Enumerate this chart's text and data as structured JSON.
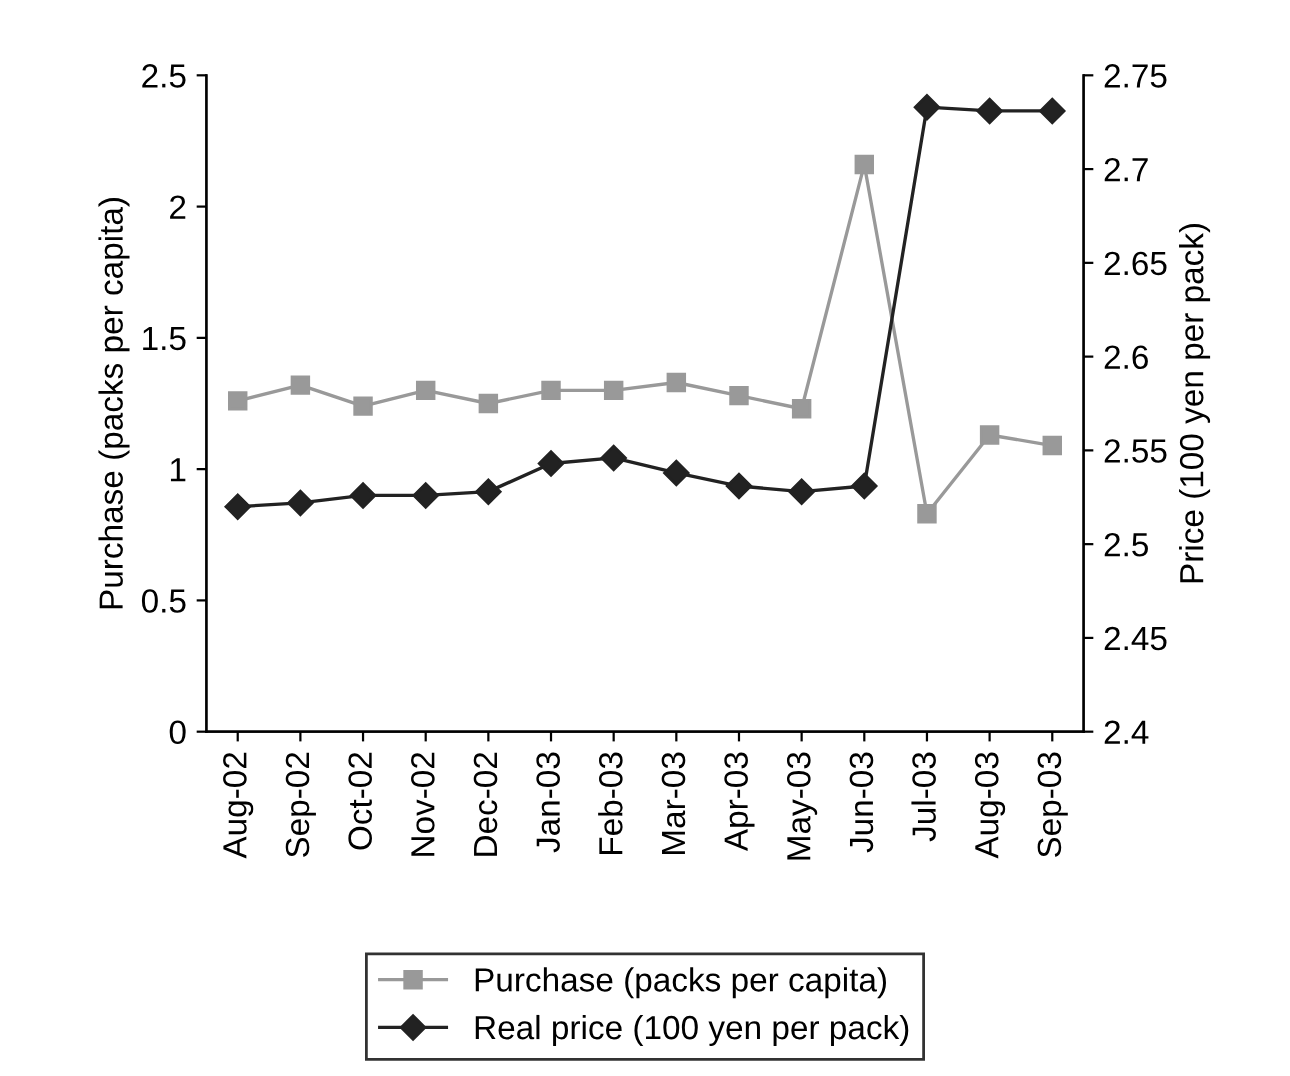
{
  "chart_data": {
    "type": "line",
    "xlabel": null,
    "ylabel": "Purchase (packs per capita)",
    "y2label": "Price (100 yen per pack)",
    "categories": [
      "Aug-02",
      "Sep-02",
      "Oct-02",
      "Nov-02",
      "Dec-02",
      "Jan-03",
      "Feb-03",
      "Mar-03",
      "Apr-03",
      "May-03",
      "Jun-03",
      "Jul-03",
      "Aug-03",
      "Sep-03"
    ],
    "series": [
      {
        "name": "Purchase (packs per capita)",
        "color": "#999999",
        "marker": "square",
        "values": [
          1.26,
          1.32,
          1.24,
          1.3,
          1.25,
          1.3,
          1.3,
          1.33,
          1.28,
          1.23,
          2.16,
          0.83,
          1.13,
          1.09
        ]
      },
      {
        "name": "Real price (100 yen per pack)",
        "color": "#222222",
        "marker": "diamond",
        "axis": "y2",
        "values": [
          2.52,
          2.522,
          2.526,
          2.526,
          2.528,
          2.543,
          2.546,
          2.538,
          2.531,
          2.528,
          2.531,
          2.733,
          2.731,
          2.731
        ]
      }
    ],
    "ylim": [
      0,
      2.5
    ],
    "yticks": [
      0,
      0.5,
      1,
      1.5,
      2,
      2.5
    ],
    "y2lim": [
      2.4,
      2.75
    ],
    "y2ticks": [
      2.4,
      2.45,
      2.5,
      2.55,
      2.6,
      2.65,
      2.7,
      2.75
    ],
    "grid": false,
    "legend": "bottom"
  }
}
